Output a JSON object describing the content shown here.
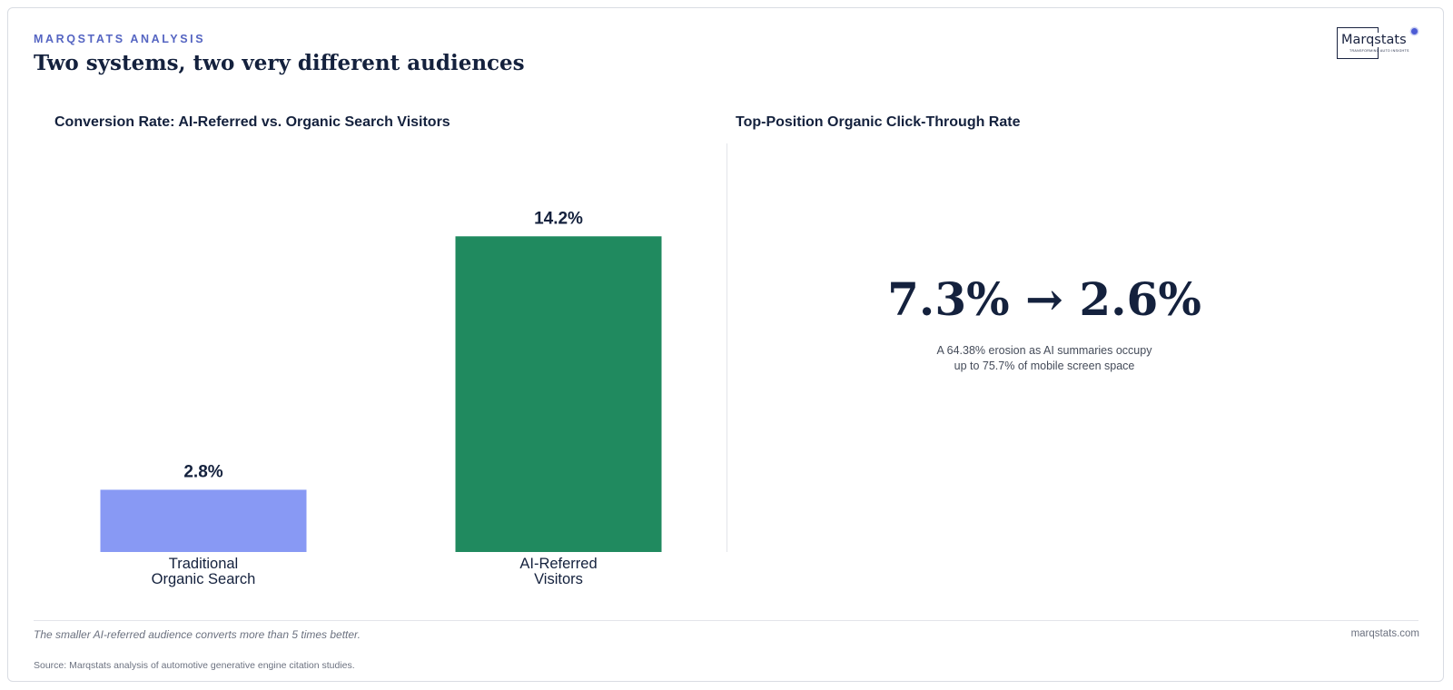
{
  "header": {
    "kicker": "MARQSTATS ANALYSIS",
    "title": "Two systems, two very different audiences"
  },
  "logo": {
    "name": "Marqstats",
    "tagline": "TRANSFORMING AUTO INSIGHTS"
  },
  "left_panel": {
    "title": "Conversion Rate: AI-Referred vs. Organic Search Visitors"
  },
  "right_panel": {
    "title": "Top-Position Organic Click-Through Rate",
    "stat": "7.3% → 2.6%",
    "note": "A 64.38% erosion as AI summaries occupy up to 75.7% of mobile screen space"
  },
  "footer": {
    "takeaway": "The smaller AI-referred audience converts more than 5 times better.",
    "site": "marqstats.com",
    "source": "Source: Marqstats analysis of automotive generative engine citation studies."
  },
  "chart_data": {
    "type": "bar",
    "title": "Conversion Rate: AI-Referred vs. Organic Search Visitors",
    "categories": [
      [
        "Traditional",
        "Organic Search"
      ],
      [
        "AI-Referred",
        "Visitors"
      ]
    ],
    "values": [
      2.8,
      14.2
    ],
    "value_labels": [
      "2.8%",
      "14.2%"
    ],
    "colors": [
      "#8899f4",
      "#208a5f"
    ],
    "ylim": [
      0,
      18.5
    ],
    "grid": false,
    "legend": "none"
  }
}
